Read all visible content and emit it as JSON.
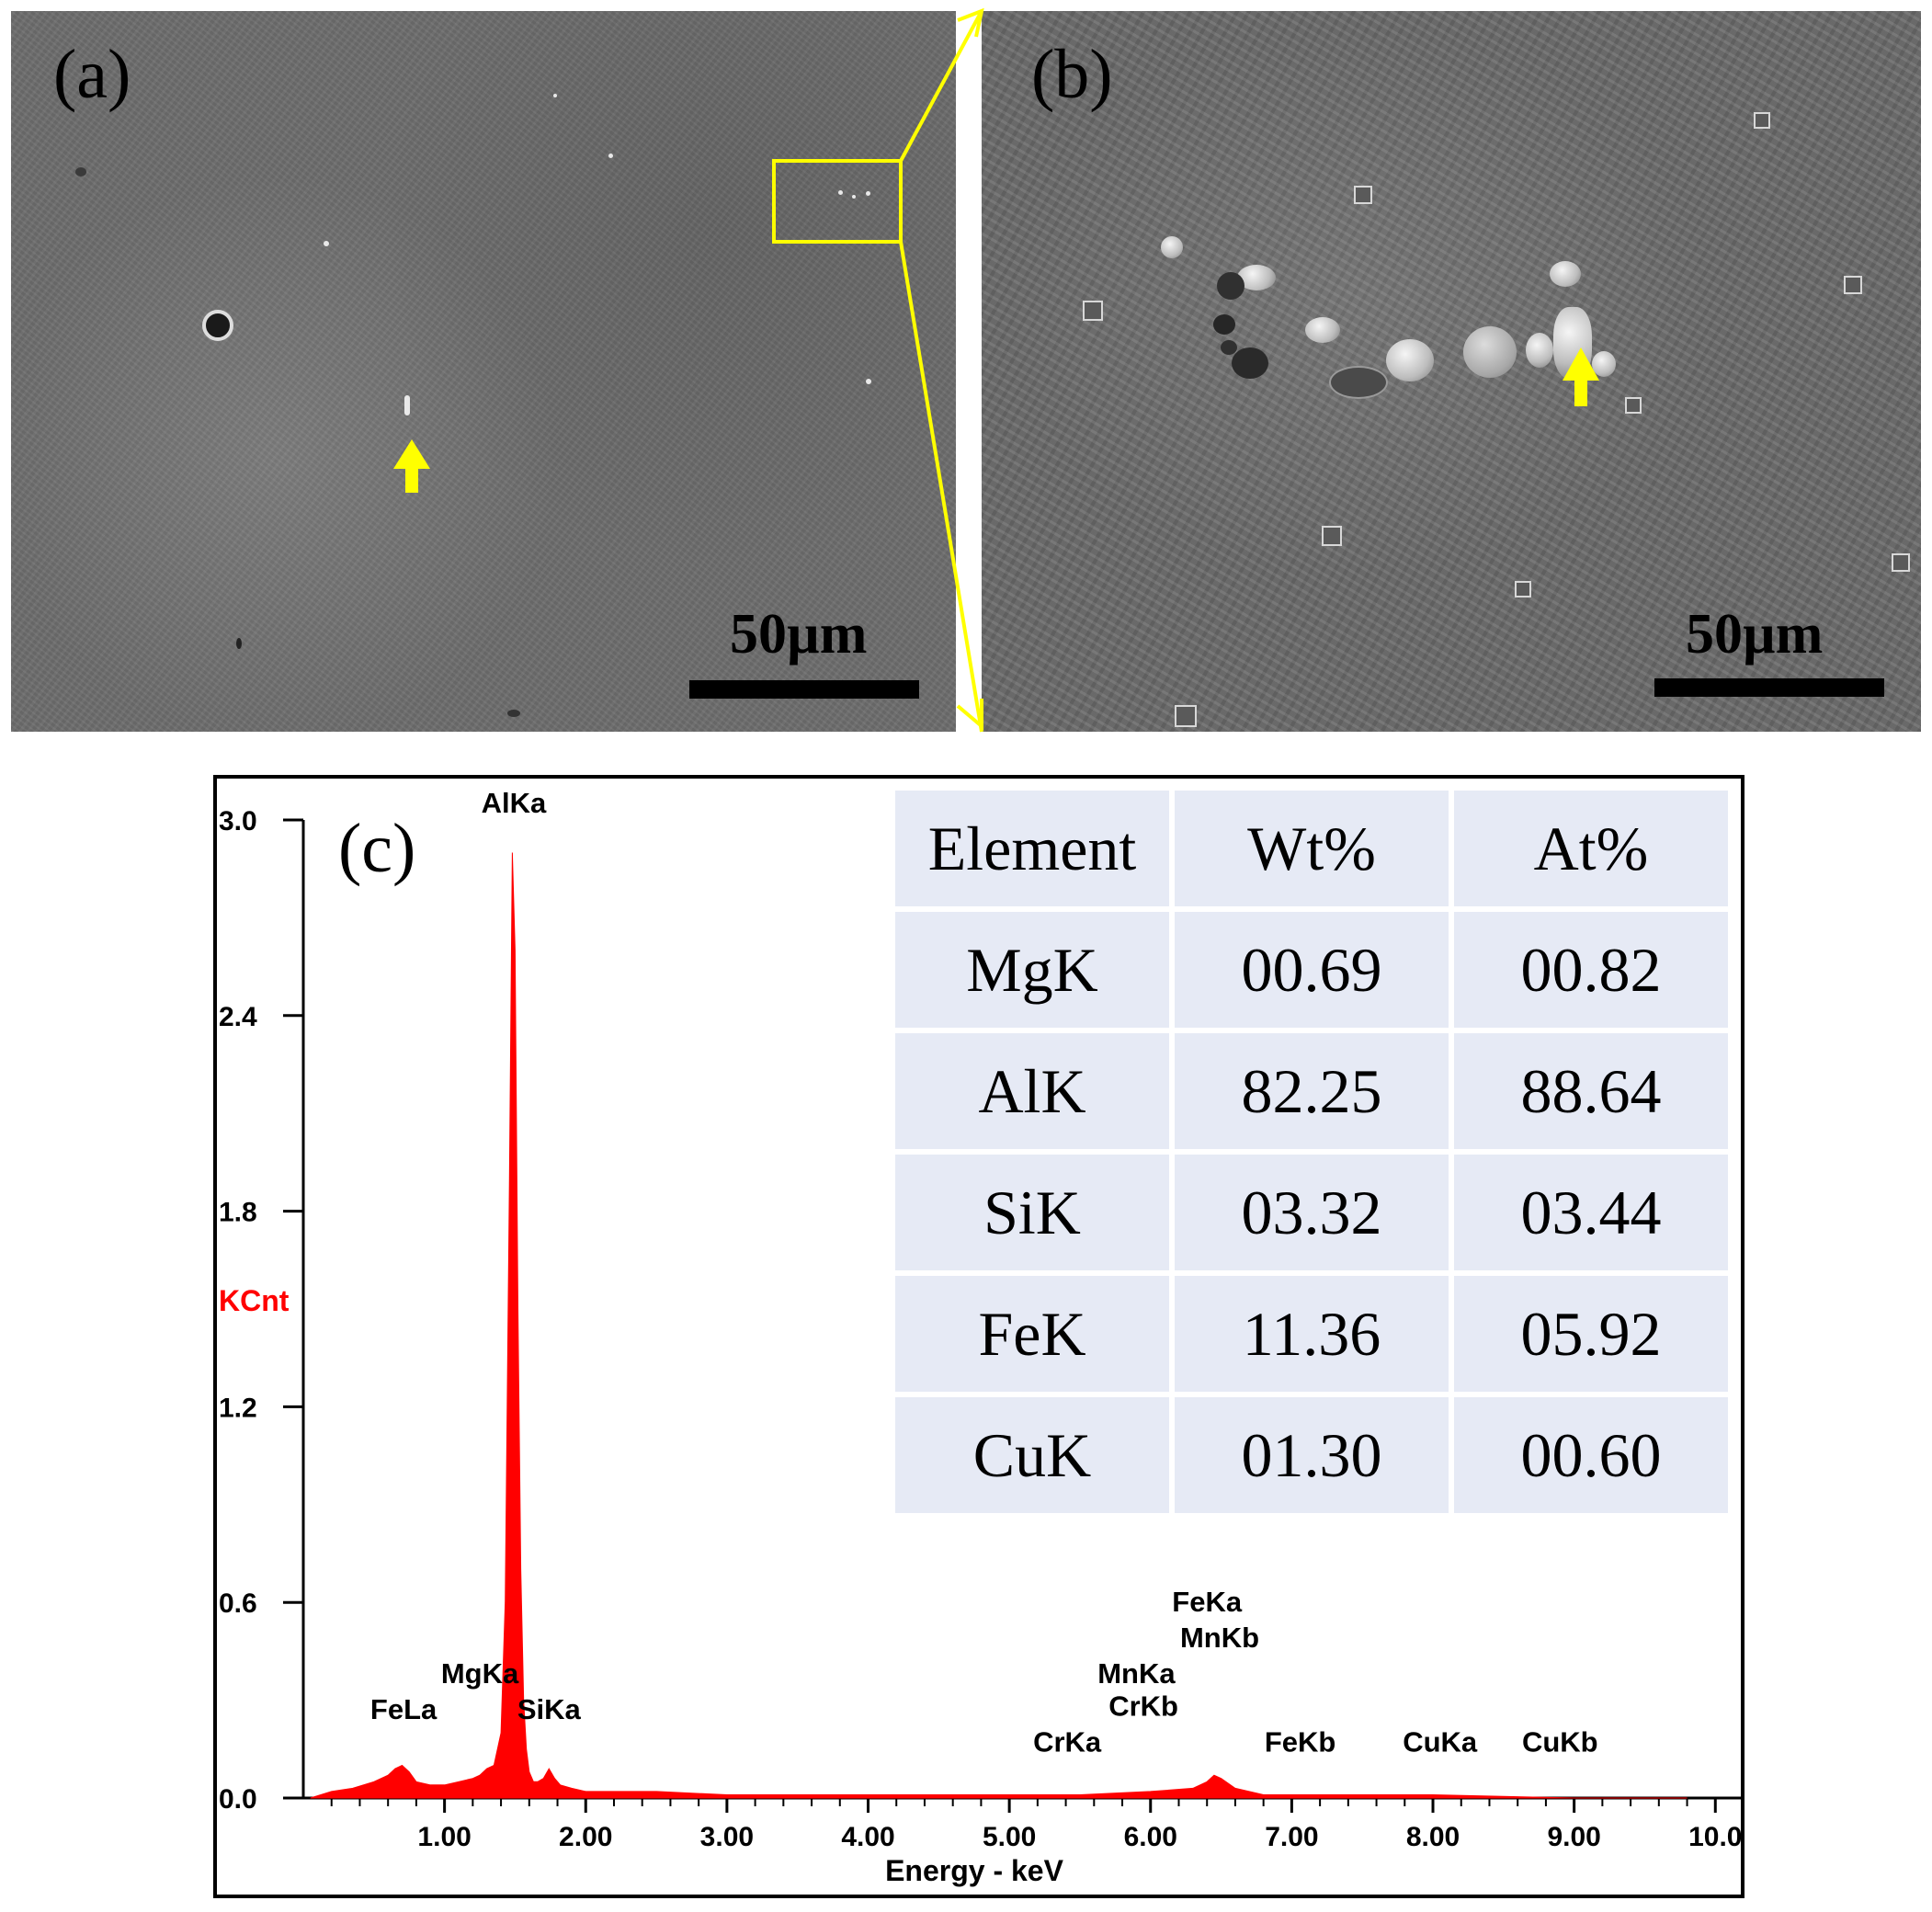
{
  "panels": {
    "a": {
      "label": "(a)",
      "scale_bar": "50µm"
    },
    "b": {
      "label": "(b)",
      "scale_bar": "50µm"
    },
    "c": {
      "label": "(c)"
    }
  },
  "colors": {
    "annotation": "#ffff00",
    "spectrum": "#ff0000",
    "table_cell": "#e6eaf5"
  },
  "table": {
    "headers": [
      "Element",
      "Wt%",
      "At%"
    ],
    "rows": [
      [
        "MgK",
        "00.69",
        "00.82"
      ],
      [
        "AlK",
        "82.25",
        "88.64"
      ],
      [
        "SiK",
        "03.32",
        "03.44"
      ],
      [
        "FeK",
        "11.36",
        "05.92"
      ],
      [
        "CuK",
        "01.30",
        "00.60"
      ]
    ]
  },
  "chart_data": {
    "type": "area",
    "xlabel": "Energy - keV",
    "ylabel": "KCnt",
    "xlim": [
      0,
      10.2
    ],
    "ylim": [
      0,
      3.0
    ],
    "x_ticks": [
      "1.00",
      "2.00",
      "3.00",
      "4.00",
      "5.00",
      "6.00",
      "7.00",
      "8.00",
      "9.00",
      "10.0"
    ],
    "y_ticks": [
      "0.0",
      "0.6",
      "1.2",
      "1.8",
      "2.4",
      "3.0"
    ],
    "series": [
      {
        "x": [
          0.05,
          0.2,
          0.35,
          0.5,
          0.6,
          0.65,
          0.7,
          0.75,
          0.8,
          0.9,
          1.0,
          1.1,
          1.2,
          1.25,
          1.3,
          1.35,
          1.4,
          1.43,
          1.46,
          1.48,
          1.5,
          1.52,
          1.54,
          1.56,
          1.58,
          1.6,
          1.63,
          1.66,
          1.7,
          1.74,
          1.78,
          1.82,
          1.9,
          2.0,
          2.5,
          3.0,
          4.0,
          5.0,
          5.5,
          6.0,
          6.3,
          6.4,
          6.45,
          6.5,
          6.6,
          6.8,
          7.0,
          8.0,
          9.0,
          9.8
        ],
        "y": [
          0.0,
          0.02,
          0.03,
          0.05,
          0.07,
          0.09,
          0.1,
          0.08,
          0.05,
          0.04,
          0.04,
          0.05,
          0.06,
          0.07,
          0.09,
          0.1,
          0.2,
          0.6,
          1.9,
          2.9,
          2.6,
          1.5,
          0.7,
          0.3,
          0.15,
          0.08,
          0.05,
          0.05,
          0.06,
          0.09,
          0.06,
          0.04,
          0.03,
          0.02,
          0.02,
          0.01,
          0.01,
          0.01,
          0.01,
          0.02,
          0.03,
          0.05,
          0.07,
          0.06,
          0.03,
          0.01,
          0.01,
          0.01,
          0.0,
          0.0
        ]
      }
    ],
    "peak_labels": [
      {
        "text": "AlKa",
        "x": 1.49,
        "y": 3.0
      },
      {
        "text": "FeLa",
        "x": 0.71,
        "y": 0.22
      },
      {
        "text": "MgKa",
        "x": 1.25,
        "y": 0.33
      },
      {
        "text": "SiKa",
        "x": 1.74,
        "y": 0.22
      },
      {
        "text": "CrKa",
        "x": 5.41,
        "y": 0.12
      },
      {
        "text": "MnKa",
        "x": 5.9,
        "y": 0.33
      },
      {
        "text": "CrKb",
        "x": 5.95,
        "y": 0.23
      },
      {
        "text": "FeKa",
        "x": 6.4,
        "y": 0.55
      },
      {
        "text": "MnKb",
        "x": 6.49,
        "y": 0.44
      },
      {
        "text": "FeKb",
        "x": 7.06,
        "y": 0.12
      },
      {
        "text": "CuKa",
        "x": 8.05,
        "y": 0.12
      },
      {
        "text": "CuKb",
        "x": 8.9,
        "y": 0.12
      }
    ]
  }
}
